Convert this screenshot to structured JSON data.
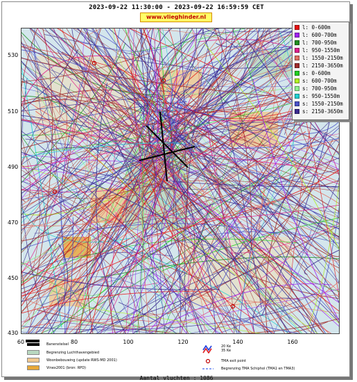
{
  "header": {
    "title": "2023-09-22 11:30:00 - 2023-09-22 16:59:59 CET",
    "website": "www.vlieghinder.nl"
  },
  "axes": {
    "y_ticks": [
      "530",
      "510",
      "490",
      "470",
      "450",
      "430"
    ],
    "x_ticks": [
      "60",
      "80",
      "100",
      "120",
      "140",
      "160"
    ],
    "x_range": [
      60,
      175
    ],
    "y_range": [
      430,
      540
    ]
  },
  "legend": {
    "items": [
      {
        "label": "l: 0-600m",
        "color": "#e81010"
      },
      {
        "label": "l: 600-700m",
        "color": "#a020f0"
      },
      {
        "label": "l: 700-950m",
        "color": "#209020"
      },
      {
        "label": "l: 950-1550m",
        "color": "#e0208c"
      },
      {
        "label": "l: 1550-2150m",
        "color": "#e07060"
      },
      {
        "label": "l: 2150-3650m",
        "color": "#a02c2c"
      },
      {
        "label": "s: 0-600m",
        "color": "#20d020"
      },
      {
        "label": "s: 600-700m",
        "color": "#b0f020"
      },
      {
        "label": "s: 700-950m",
        "color": "#90f090"
      },
      {
        "label": "s: 950-1550m",
        "color": "#20d0d0"
      },
      {
        "label": "s: 1550-2150m",
        "color": "#4a52c8"
      },
      {
        "label": "s: 2150-3650m",
        "color": "#3a2a90"
      }
    ]
  },
  "map_legend": {
    "items": [
      {
        "label": "Banenstelsel",
        "color": "#000000"
      },
      {
        "label": "Begrenzing Luchthavengebied",
        "color": "#b8d8c0"
      },
      {
        "label": "Woonbebouwing (update RWS-MD 2001)",
        "color": "#f0c890"
      },
      {
        "label": "Vinex2001 (bron: RPD)",
        "color": "#e8a838"
      }
    ],
    "symbols": [
      {
        "label": "20 Ke",
        "color": "#2040e0"
      },
      {
        "label": "35 Ke",
        "color": "#e02020"
      },
      {
        "label": "TMA exit point",
        "color": "#c00000"
      },
      {
        "label": "Begrenzing TMA Schiphol  (TMA1 en TMA3)",
        "color": "#6080f0"
      }
    ]
  },
  "footer": {
    "count_label": "Aantal vluchten : 1086"
  }
}
